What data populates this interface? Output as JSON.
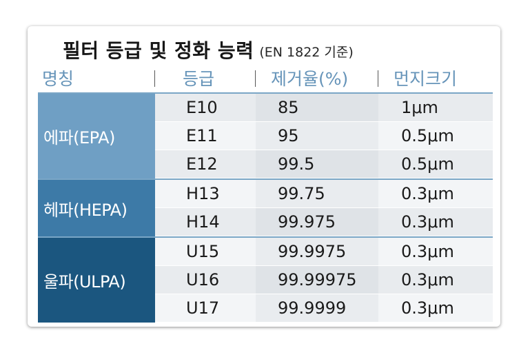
{
  "title": {
    "main": "필터 등급 및 정화 능력",
    "sub": "(EN 1822 기준)"
  },
  "headers": [
    "명칭",
    "등급",
    "제거율(%)",
    "먼지크기"
  ],
  "groups": [
    {
      "name": "에파(EPA)",
      "rows": [
        {
          "grade": "E10",
          "rate": "85",
          "size": "1μm"
        },
        {
          "grade": "E11",
          "rate": "95",
          "size": "0.5μm"
        },
        {
          "grade": "E12",
          "rate": "99.5",
          "size": "0.5μm"
        }
      ]
    },
    {
      "name": "헤파(HEPA)",
      "rows": [
        {
          "grade": "H13",
          "rate": "99.75",
          "size": "0.3μm"
        },
        {
          "grade": "H14",
          "rate": "99.975",
          "size": "0.3μm"
        }
      ]
    },
    {
      "name": "울파(ULPA)",
      "rows": [
        {
          "grade": "U15",
          "rate": "99.9975",
          "size": "0.3μm"
        },
        {
          "grade": "U16",
          "rate": "99.99975",
          "size": "0.3μm"
        },
        {
          "grade": "U17",
          "rate": "99.9999",
          "size": "0.3μm"
        }
      ]
    }
  ]
}
